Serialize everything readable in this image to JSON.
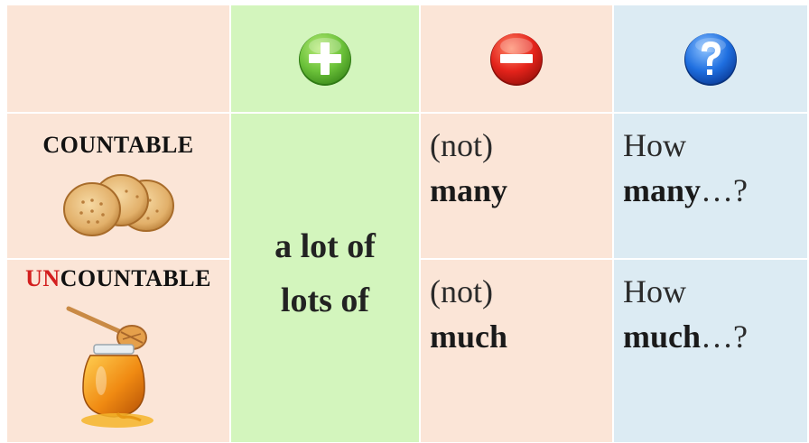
{
  "header": {
    "plus_icon": "plus-circle-icon",
    "minus_icon": "minus-circle-icon",
    "question_icon": "question-circle-icon",
    "colors": {
      "plus": "#6cc23a",
      "minus": "#e4231b",
      "question": "#1f6fe0"
    }
  },
  "rows": {
    "countable_label": "COUNTABLE",
    "uncountable_prefix": "UN",
    "uncountable_rest": "COUNTABLE"
  },
  "positive": {
    "line1": "a lot of",
    "line2": "lots of"
  },
  "negative": {
    "countable": {
      "prefix": "(not)",
      "word": "many"
    },
    "uncountable": {
      "prefix": "(not)",
      "word": "much"
    }
  },
  "question": {
    "countable": {
      "prefix": "How",
      "word": "many",
      "suffix": "…?"
    },
    "uncountable": {
      "prefix": "How",
      "word": "much",
      "suffix": "…?"
    }
  },
  "colors": {
    "peach": "#fbe5d7",
    "green": "#d3f5bd",
    "blue": "#dcebf3",
    "accent_red": "#d31f1f"
  }
}
